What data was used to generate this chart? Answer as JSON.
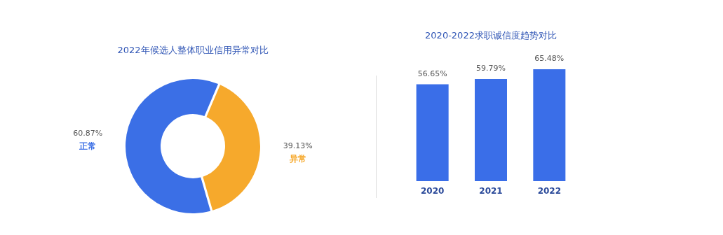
{
  "chart_data": [
    {
      "type": "donut",
      "title": "2022年候选人整体职业信用异常对比",
      "categories": [
        "正常",
        "异常"
      ],
      "values": [
        60.87,
        39.13
      ],
      "colors": [
        "#3b6fe6",
        "#f6a92c"
      ],
      "value_labels": [
        "60.87%",
        "39.13%"
      ],
      "legend": false
    },
    {
      "type": "bar",
      "title": "2020-2022求职诚信度趋势对比",
      "categories": [
        "2020",
        "2021",
        "2022"
      ],
      "values": [
        56.65,
        59.79,
        65.48
      ],
      "color": "#3a6ee8",
      "value_labels": [
        "56.65%",
        "59.79%",
        "65.48%"
      ],
      "tick_labels": "x"
    }
  ]
}
